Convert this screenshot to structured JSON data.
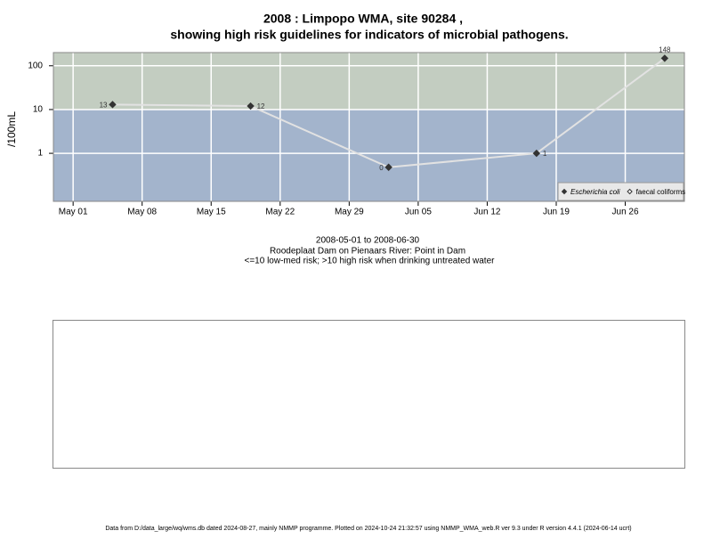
{
  "chart_data": {
    "type": "line",
    "title": [
      "2008 : Limpopo WMA, site 90284 ,",
      "showing high risk guidelines for indicators of microbial pathogens."
    ],
    "ylabel": "/100mL",
    "subtitle": [
      "2008-05-01 to 2008-06-30",
      "Roodeplaat Dam on Pienaars River: Point in Dam",
      "<=10 low-med risk; >10 high risk when drinking untreated water"
    ],
    "footer": "Data from D:/data_large/wq/wms.db dated 2024-08-27, mainly NMMP programme. Plotted on 2024-10-24 21:32:57 using NMMP_WMA_web.R ver 9.3 under R version 4.4.1 (2024-06-14 ucrt)",
    "x": [
      "2008-05-05",
      "2008-05-19",
      "2008-06-02",
      "2008-06-17",
      "2008-06-30"
    ],
    "series": [
      {
        "name": "Escherichia coli",
        "color": "#333333",
        "values": [
          13,
          12,
          0.48,
          1,
          148
        ],
        "value_labels": [
          "13",
          "12",
          "0",
          "1",
          "148"
        ]
      },
      {
        "name": "faecal coliforms",
        "color": "#ffffff",
        "values": [
          null,
          null,
          null,
          null,
          null
        ]
      }
    ],
    "line_color": "#e2e2e2",
    "guideline": 10,
    "band_colors": {
      "above": "#c3cdc1",
      "below": "#a3b4cc"
    },
    "ylog": true,
    "ylim": [
      0.08,
      200
    ],
    "yticks": [
      1,
      10,
      100
    ],
    "xlim": [
      "2008-04-29",
      "2008-07-02"
    ],
    "xticks": [
      {
        "value": "2008-05-01",
        "label": "May 01"
      },
      {
        "value": "2008-05-08",
        "label": "May 08"
      },
      {
        "value": "2008-05-15",
        "label": "May 15"
      },
      {
        "value": "2008-05-22",
        "label": "May 22"
      },
      {
        "value": "2008-05-29",
        "label": "May 29"
      },
      {
        "value": "2008-06-05",
        "label": "Jun 05"
      },
      {
        "value": "2008-06-12",
        "label": "Jun 12"
      },
      {
        "value": "2008-06-19",
        "label": "Jun 19"
      },
      {
        "value": "2008-06-26",
        "label": "Jun 26"
      }
    ],
    "grid": true,
    "legend": "bottom-right"
  }
}
